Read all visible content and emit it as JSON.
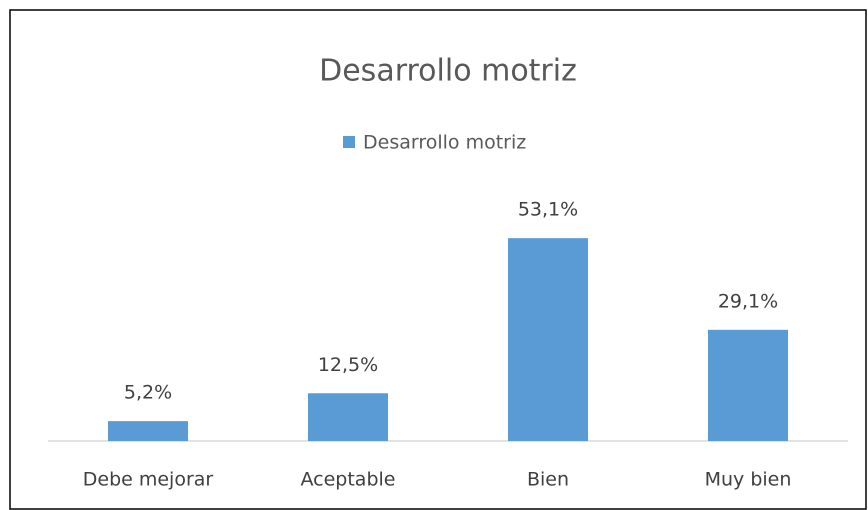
{
  "chart_data": {
    "type": "bar",
    "title": "Desarrollo motriz",
    "categories": [
      "Debe mejorar",
      "Aceptable",
      "Bien",
      "Muy bien"
    ],
    "series": [
      {
        "name": "Desarrollo motriz",
        "color": "#5b9bd5",
        "values": [
          5.2,
          12.5,
          53.1,
          29.1
        ],
        "value_labels": [
          "5,2%",
          "12,5%",
          "53,1%",
          "29,1%"
        ]
      }
    ],
    "legend": "top"
  }
}
